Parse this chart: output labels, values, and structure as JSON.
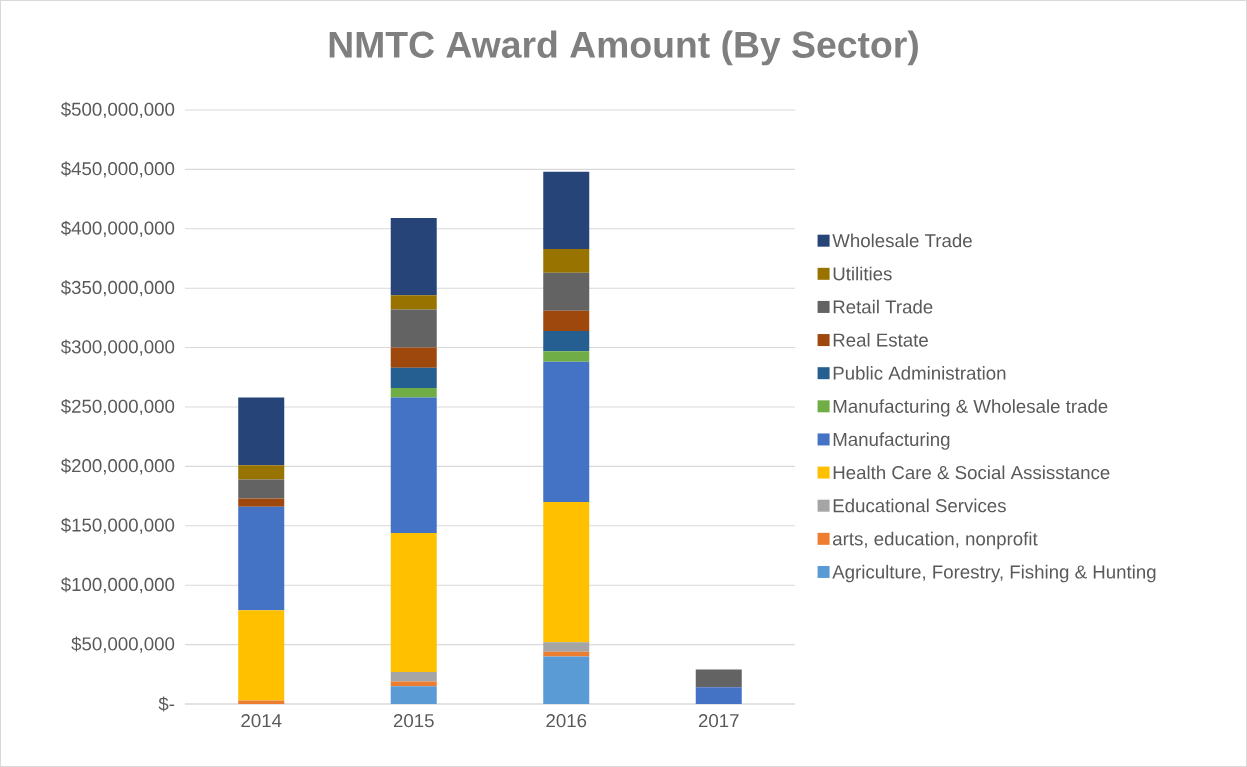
{
  "chart_data": {
    "type": "bar",
    "title": "NMTC Award Amount (By Sector)",
    "stacked": true,
    "grid": "y",
    "legend": "right",
    "categories": [
      "2014",
      "2015",
      "2016",
      "2017"
    ],
    "ylim": [
      0,
      500000000
    ],
    "yticks": [
      {
        "value": 0,
        "label": "$-"
      },
      {
        "value": 50000000,
        "label": "$50,000,000"
      },
      {
        "value": 100000000,
        "label": "$100,000,000"
      },
      {
        "value": 150000000,
        "label": "$150,000,000"
      },
      {
        "value": 200000000,
        "label": "$200,000,000"
      },
      {
        "value": 250000000,
        "label": "$250,000,000"
      },
      {
        "value": 300000000,
        "label": "$300,000,000"
      },
      {
        "value": 350000000,
        "label": "$350,000,000"
      },
      {
        "value": 400000000,
        "label": "$400,000,000"
      },
      {
        "value": 450000000,
        "label": "$450,000,000"
      },
      {
        "value": 500000000,
        "label": "$500,000,000"
      }
    ],
    "series": [
      {
        "name": "Agriculture, Forestry, Fishing & Hunting",
        "color": "#5b9bd5",
        "values": [
          0,
          15000000,
          40000000,
          0
        ]
      },
      {
        "name": "arts, education, nonprofit",
        "color": "#ed7d31",
        "values": [
          3000000,
          4000000,
          4000000,
          0
        ]
      },
      {
        "name": "Educational Services",
        "color": "#a5a5a5",
        "values": [
          0,
          8000000,
          8000000,
          0
        ]
      },
      {
        "name": "Health Care & Social Assisstance",
        "color": "#ffc000",
        "values": [
          76000000,
          117000000,
          118000000,
          0
        ]
      },
      {
        "name": "Manufacturing",
        "color": "#4472c4",
        "values": [
          87000000,
          114000000,
          118000000,
          14000000
        ]
      },
      {
        "name": "Manufacturing & Wholesale trade",
        "color": "#70ad47",
        "values": [
          0,
          8000000,
          9000000,
          0
        ]
      },
      {
        "name": "Public Administration",
        "color": "#255e91",
        "values": [
          0,
          17000000,
          17000000,
          0
        ]
      },
      {
        "name": "Real Estate",
        "color": "#9e480e",
        "values": [
          7000000,
          17000000,
          17000000,
          0
        ]
      },
      {
        "name": "Retail Trade",
        "color": "#636363",
        "values": [
          16000000,
          32000000,
          32000000,
          15000000
        ]
      },
      {
        "name": "Utilities",
        "color": "#997300",
        "values": [
          12000000,
          12000000,
          20000000,
          0
        ]
      },
      {
        "name": "Wholesale Trade",
        "color": "#264478",
        "values": [
          57000000,
          65000000,
          65000000,
          0
        ]
      }
    ]
  }
}
